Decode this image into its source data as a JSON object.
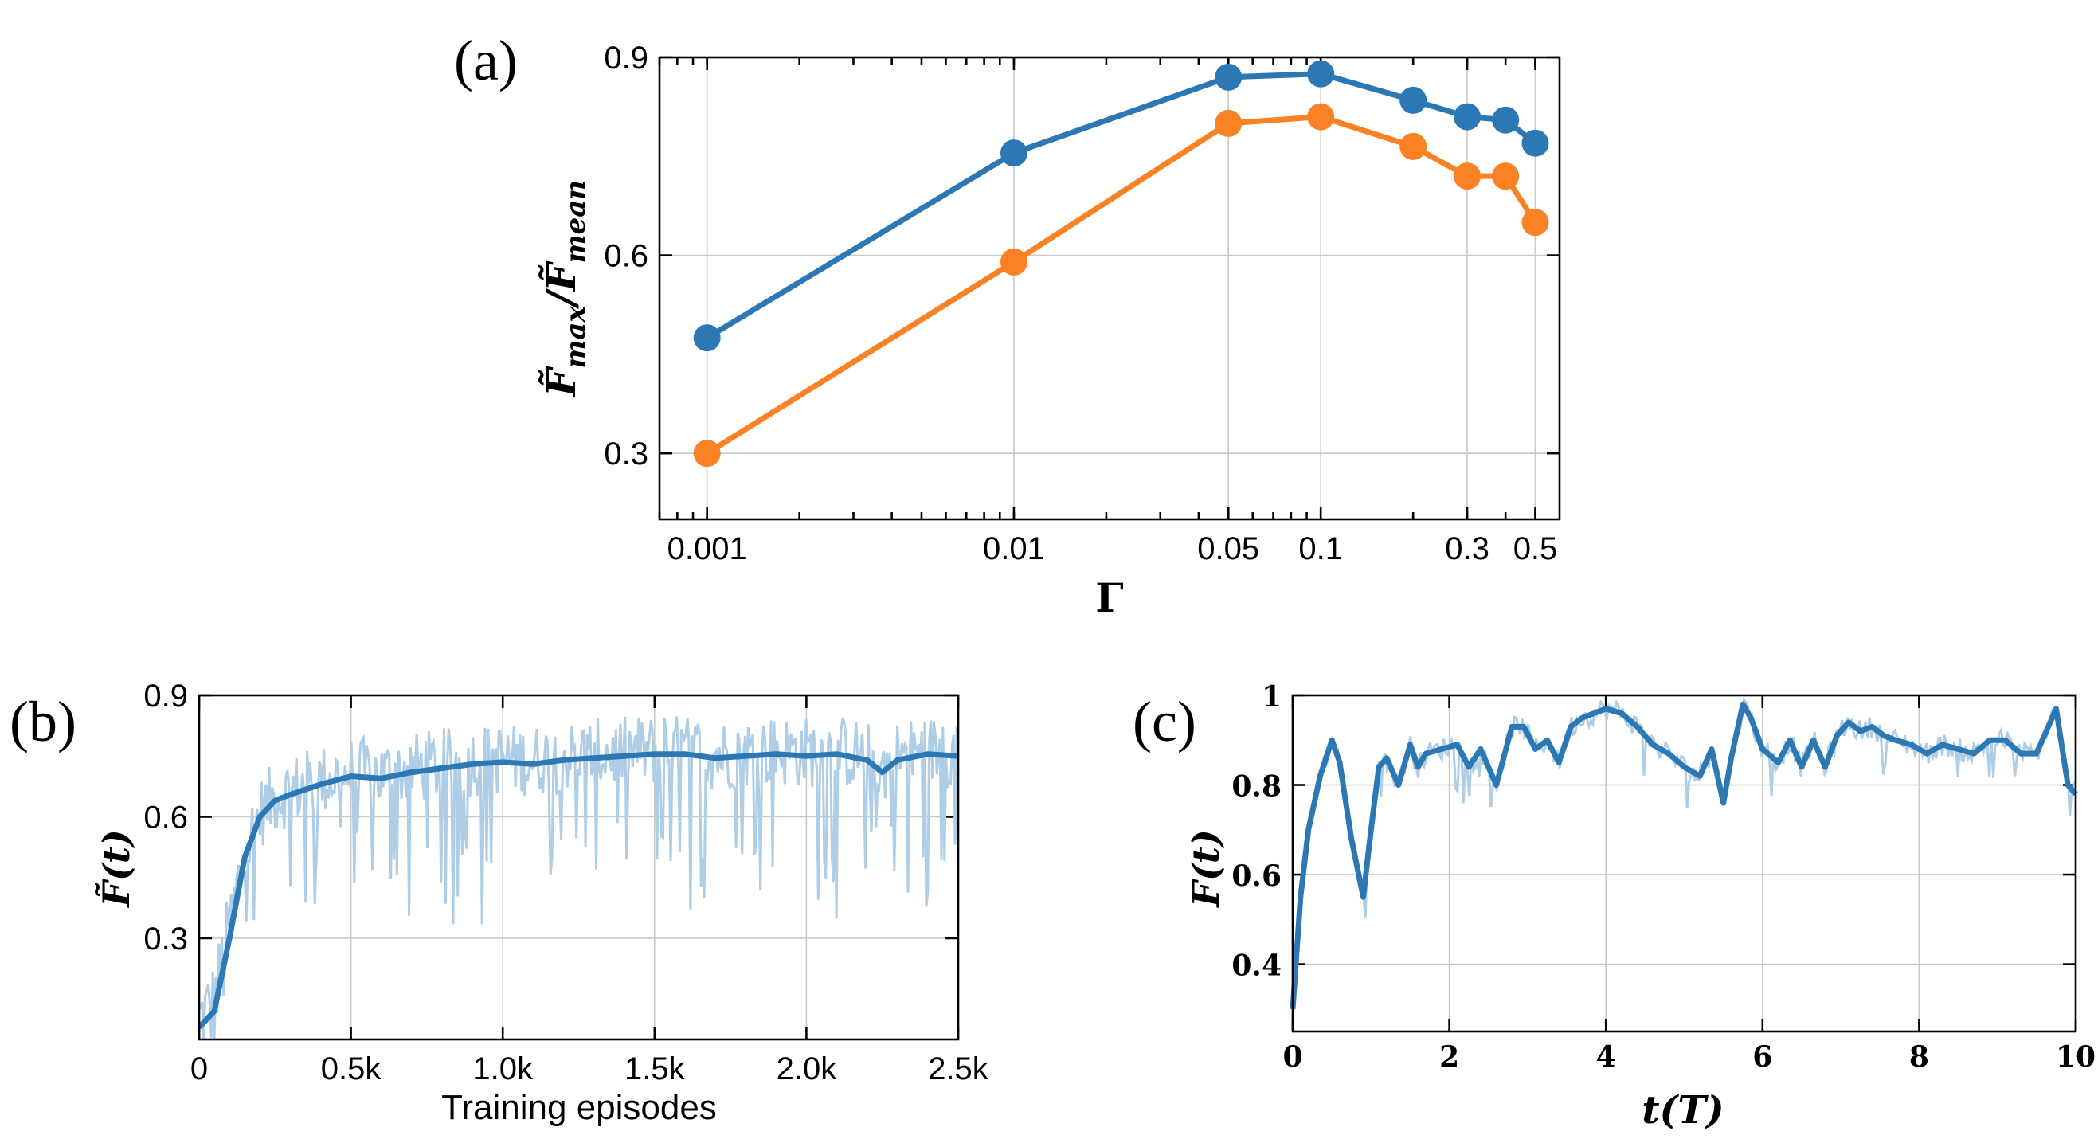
{
  "colors": {
    "blue": "#2c78b5",
    "orange": "#fa8224",
    "light_blue": "#aecde6"
  },
  "chart_data": [
    {
      "id": "a",
      "panel_label": "(a)",
      "type": "line",
      "xscale": "log",
      "xlabel": "Γ",
      "ylabel_parts": [
        "F̃",
        "max",
        "/F̃",
        "mean"
      ],
      "xlim": [
        0.0007,
        0.6
      ],
      "ylim": [
        0.2,
        0.9
      ],
      "xticks": [
        0.001,
        0.01,
        0.05,
        0.1,
        0.3,
        0.5
      ],
      "xtick_labels": [
        "0.001",
        "0.01",
        "0.05",
        "0.1",
        "0.3",
        "0.5"
      ],
      "yticks": [
        0.3,
        0.6,
        0.9
      ],
      "ytick_labels": [
        "0.3",
        "0.6",
        "0.9"
      ],
      "grid": true,
      "series": [
        {
          "name": "blue",
          "color": "#2c78b5",
          "x": [
            0.001,
            0.01,
            0.05,
            0.1,
            0.2,
            0.3,
            0.4,
            0.5
          ],
          "y": [
            0.475,
            0.755,
            0.87,
            0.875,
            0.835,
            0.81,
            0.805,
            0.77
          ]
        },
        {
          "name": "orange",
          "color": "#fa8224",
          "x": [
            0.001,
            0.01,
            0.05,
            0.1,
            0.2,
            0.3,
            0.4,
            0.5
          ],
          "y": [
            0.3,
            0.59,
            0.8,
            0.81,
            0.765,
            0.72,
            0.72,
            0.65
          ]
        }
      ]
    },
    {
      "id": "b",
      "panel_label": "(b)",
      "type": "line",
      "xlabel": "Training episodes",
      "ylabel_parts": [
        "F̃",
        "(t)"
      ],
      "xlim": [
        0,
        2500
      ],
      "ylim": [
        0.05,
        0.9
      ],
      "xticks": [
        0,
        500,
        1000,
        1500,
        2000,
        2500
      ],
      "xtick_labels": [
        "0",
        "0.5k",
        "1.0k",
        "1.5k",
        "2.0k",
        "2.5k"
      ],
      "yticks": [
        0.3,
        0.6,
        0.9
      ],
      "ytick_labels": [
        "0.3",
        "0.6",
        "0.9"
      ],
      "grid": true,
      "series": [
        {
          "name": "smoothed",
          "color": "#2c78b5",
          "x": [
            0,
            50,
            100,
            150,
            200,
            250,
            300,
            400,
            500,
            600,
            700,
            800,
            900,
            1000,
            1100,
            1200,
            1300,
            1400,
            1500,
            1600,
            1700,
            1800,
            1900,
            2000,
            2100,
            2200,
            2250,
            2300,
            2400,
            2500
          ],
          "y": [
            0.08,
            0.12,
            0.3,
            0.5,
            0.6,
            0.64,
            0.655,
            0.68,
            0.7,
            0.695,
            0.71,
            0.72,
            0.73,
            0.735,
            0.73,
            0.74,
            0.745,
            0.75,
            0.755,
            0.755,
            0.745,
            0.75,
            0.755,
            0.75,
            0.755,
            0.74,
            0.71,
            0.74,
            0.755,
            0.75
          ]
        },
        {
          "name": "raw",
          "color": "#aecde6",
          "x_range": [
            0,
            2500
          ],
          "n_points": 500,
          "description_envelope_low": [
            0.05,
            0.1,
            0.35,
            0.45,
            0.5,
            0.5,
            0.5,
            0.45,
            0.45,
            0.45,
            0.45
          ],
          "description_envelope_high": [
            0.25,
            0.6,
            0.78,
            0.8,
            0.82,
            0.82,
            0.84,
            0.85,
            0.85,
            0.85,
            0.85
          ]
        }
      ]
    },
    {
      "id": "c",
      "panel_label": "(c)",
      "type": "line",
      "xlabel": "t(T)",
      "ylabel": "F(t)",
      "xlim": [
        0,
        10
      ],
      "ylim": [
        0.25,
        1.0
      ],
      "xticks": [
        0,
        2,
        4,
        6,
        8,
        10
      ],
      "xtick_labels": [
        "0",
        "2",
        "4",
        "6",
        "8",
        "10"
      ],
      "yticks": [
        0.4,
        0.6,
        0.8,
        1.0
      ],
      "ytick_labels": [
        "0.4",
        "0.6",
        "0.8",
        "1"
      ],
      "grid": true,
      "series": [
        {
          "name": "smoothed",
          "color": "#2c78b5",
          "x": [
            0,
            0.1,
            0.2,
            0.35,
            0.5,
            0.6,
            0.75,
            0.9,
            1.0,
            1.1,
            1.2,
            1.35,
            1.5,
            1.6,
            1.7,
            1.9,
            2.1,
            2.25,
            2.4,
            2.6,
            2.8,
            2.95,
            3.1,
            3.25,
            3.4,
            3.55,
            3.7,
            3.85,
            4.0,
            4.2,
            4.4,
            4.6,
            4.8,
            5.0,
            5.2,
            5.35,
            5.5,
            5.6,
            5.75,
            5.85,
            6.0,
            6.2,
            6.35,
            6.5,
            6.65,
            6.8,
            6.95,
            7.1,
            7.25,
            7.4,
            7.55,
            7.7,
            7.9,
            8.1,
            8.3,
            8.5,
            8.7,
            8.9,
            9.1,
            9.3,
            9.5,
            9.65,
            9.75,
            9.9,
            10.0
          ],
          "y": [
            0.3,
            0.55,
            0.7,
            0.82,
            0.9,
            0.85,
            0.68,
            0.55,
            0.7,
            0.84,
            0.86,
            0.8,
            0.89,
            0.84,
            0.87,
            0.88,
            0.89,
            0.84,
            0.88,
            0.8,
            0.93,
            0.93,
            0.88,
            0.9,
            0.85,
            0.93,
            0.95,
            0.96,
            0.97,
            0.96,
            0.93,
            0.89,
            0.87,
            0.84,
            0.82,
            0.88,
            0.76,
            0.86,
            0.98,
            0.95,
            0.88,
            0.85,
            0.9,
            0.84,
            0.9,
            0.84,
            0.91,
            0.94,
            0.92,
            0.93,
            0.91,
            0.9,
            0.89,
            0.87,
            0.89,
            0.88,
            0.87,
            0.9,
            0.9,
            0.87,
            0.87,
            0.93,
            0.97,
            0.8,
            0.78
          ]
        },
        {
          "name": "raw",
          "color": "#aecde6",
          "x_range": [
            0,
            10
          ],
          "n_points": 400
        }
      ]
    }
  ]
}
